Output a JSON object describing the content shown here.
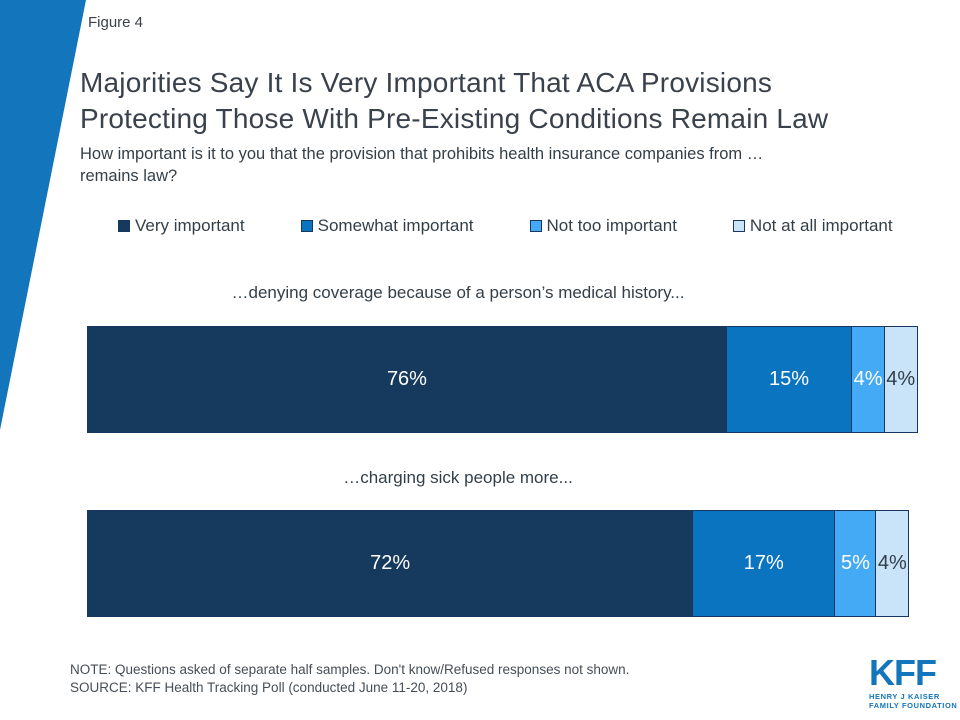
{
  "figure_label": "Figure 4",
  "title_line1": "Majorities Say It Is Very Important That ACA Provisions",
  "title_line2": "Protecting Those With Pre-Existing Conditions Remain Law",
  "subtitle_line1": "How important is it to you that the provision that prohibits health insurance companies from …",
  "subtitle_line2": "remains law?",
  "chart_data": {
    "type": "bar",
    "orientation": "horizontal-stacked",
    "xlim": [
      0,
      100
    ],
    "value_suffix": "%",
    "grid": false,
    "legend_position": "top",
    "series_labels": [
      "Very important",
      "Somewhat important",
      "Not too important",
      "Not at all important"
    ],
    "series_colors": [
      "#153A5E",
      "#0B74C1",
      "#45AAF5",
      "#C9E3F9"
    ],
    "series_label_text_colors": [
      "#ffffff",
      "#ffffff",
      "#ffffff",
      "#333F48"
    ],
    "categories": [
      "…denying coverage because of a person’s medical history...",
      "…charging sick people more..."
    ],
    "series": [
      {
        "name": "Very important",
        "values": [
          76,
          72
        ]
      },
      {
        "name": "Somewhat important",
        "values": [
          15,
          17
        ]
      },
      {
        "name": "Not too important",
        "values": [
          4,
          5
        ]
      },
      {
        "name": "Not at all important",
        "values": [
          4,
          4
        ]
      }
    ],
    "rows": [
      {
        "label": "…denying coverage because of a person’s medical history...",
        "values": [
          76,
          15,
          4,
          4
        ]
      },
      {
        "label": "…charging sick people more...",
        "values": [
          72,
          17,
          5,
          4
        ]
      }
    ]
  },
  "note": "NOTE: Questions asked of separate half samples. Don't know/Refused responses not shown.",
  "source": "SOURCE: KFF Health Tracking Poll (conducted June 11-20, 2018)",
  "logo": {
    "text": "KFF",
    "sub_line1": "HENRY J KAISER",
    "sub_line2": "FAMILY FOUNDATION",
    "color": "#1375BC"
  },
  "colors": {
    "accent_blue": "#1375BC",
    "title_text": "#39424C",
    "bar_border": "#17375E"
  }
}
